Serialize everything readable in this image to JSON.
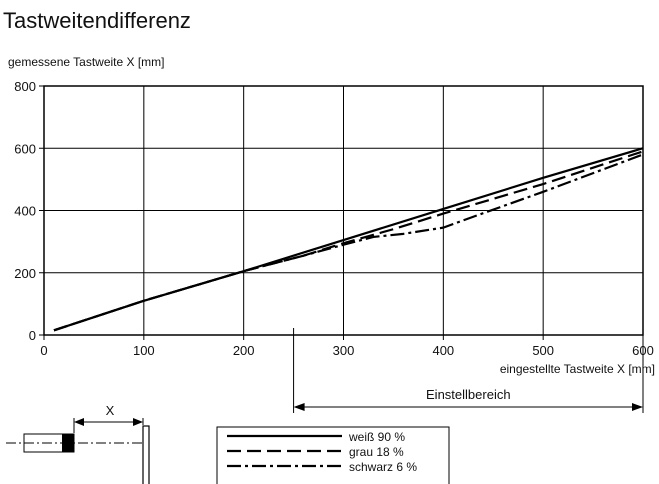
{
  "chart_data": {
    "type": "line",
    "title": "Tastweitendifferenz",
    "ylabel": "gemessene Tastweite X [mm]",
    "xlabel": "eingestellte Tastweite X [mm]",
    "xlim": [
      0,
      600
    ],
    "ylim": [
      0,
      800
    ],
    "xticks": [
      0,
      100,
      200,
      300,
      400,
      500,
      600
    ],
    "yticks": [
      0,
      200,
      400,
      600,
      800
    ],
    "grid": true,
    "legend_position": "bottom",
    "series": [
      {
        "name": "weiß 90 %",
        "style": "solid",
        "x": [
          10,
          100,
          200,
          300,
          400,
          500,
          600
        ],
        "y": [
          15,
          110,
          205,
          305,
          405,
          505,
          600
        ]
      },
      {
        "name": "grau 18 %",
        "style": "dashed",
        "x": [
          10,
          100,
          200,
          260,
          300,
          350,
          400,
          500,
          600
        ],
        "y": [
          15,
          110,
          205,
          255,
          295,
          340,
          390,
          485,
          590
        ]
      },
      {
        "name": "schwarz 6 %",
        "style": "dashdot",
        "x": [
          10,
          100,
          200,
          260,
          300,
          330,
          360,
          400,
          430,
          500,
          600
        ],
        "y": [
          15,
          110,
          205,
          255,
          290,
          315,
          325,
          345,
          380,
          460,
          580
        ]
      }
    ],
    "range_annotation": {
      "label": "Einstellbereich",
      "from": 250,
      "to": 600
    },
    "diagram_label": "X"
  }
}
